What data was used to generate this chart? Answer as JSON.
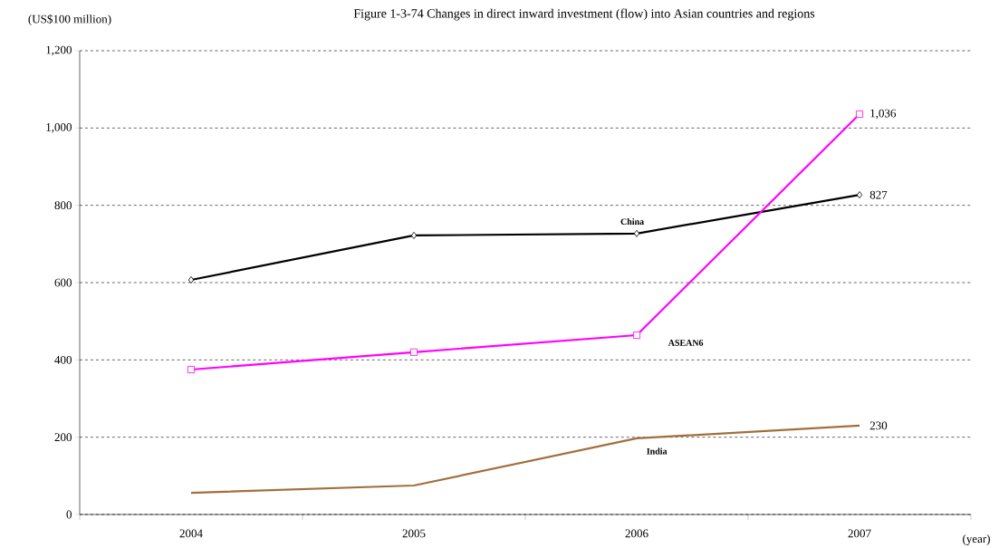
{
  "chart_data": {
    "type": "line",
    "title": "Figure 1-3-74 Changes in direct inward investment (flow) into Asian countries and regions",
    "ylabel": "(US$100 million)",
    "xlabel": "(year)",
    "categories": [
      "2004",
      "2005",
      "2006",
      "2007"
    ],
    "series": [
      {
        "name": "China",
        "color": "#000000",
        "marker": "diamond",
        "values": [
          607,
          722,
          727,
          827
        ],
        "value_labels": [
          null,
          null,
          null,
          "827"
        ]
      },
      {
        "name": "ASEAN6",
        "color": "#ff00ff",
        "marker": "square",
        "values": [
          375,
          420,
          464,
          1036
        ],
        "value_labels": [
          null,
          null,
          null,
          "1,036"
        ]
      },
      {
        "name": "India",
        "color": "#a0703c",
        "marker": "none",
        "values": [
          56,
          75,
          197,
          230
        ],
        "value_labels": [
          null,
          null,
          null,
          "230"
        ]
      }
    ],
    "ylim": [
      0,
      1200
    ],
    "yticks": [
      0,
      200,
      400,
      600,
      800,
      {
        "value": 1000,
        "label": "1,000"
      },
      {
        "value": 1200,
        "label": "1,200"
      }
    ],
    "grid": "y"
  }
}
